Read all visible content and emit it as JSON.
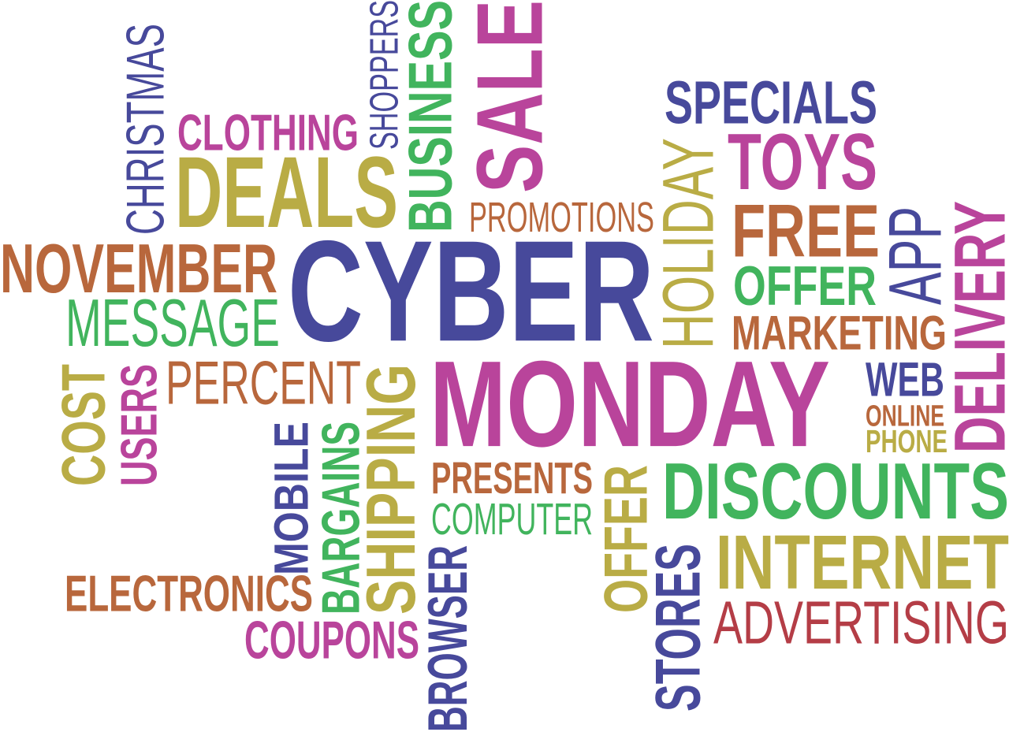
{
  "palette": {
    "blue": "#47499b",
    "magenta": "#b9449b",
    "olive": "#b9ac45",
    "green": "#41b45d",
    "orange": "#b8673c",
    "red": "#b43d46"
  },
  "words": [
    {
      "id": "cyber",
      "text": "CYBER",
      "color": "blue",
      "weight": "bold",
      "orientation": "horizontal"
    },
    {
      "id": "monday",
      "text": "MONDAY",
      "color": "magenta",
      "weight": "bold",
      "orientation": "horizontal"
    },
    {
      "id": "christmas",
      "text": "CHRISTMAS",
      "color": "blue",
      "weight": "normal",
      "orientation": "vertical"
    },
    {
      "id": "clothing",
      "text": "CLOTHING",
      "color": "magenta",
      "weight": "bold",
      "orientation": "horizontal"
    },
    {
      "id": "shoppers",
      "text": "SHOPPERS",
      "color": "blue",
      "weight": "normal",
      "orientation": "vertical"
    },
    {
      "id": "business",
      "text": "BUSINESS",
      "color": "green",
      "weight": "bold",
      "orientation": "vertical"
    },
    {
      "id": "sale",
      "text": "SALE",
      "color": "magenta",
      "weight": "bold",
      "orientation": "vertical"
    },
    {
      "id": "deals",
      "text": "DEALS",
      "color": "olive",
      "weight": "bold",
      "orientation": "horizontal"
    },
    {
      "id": "specials",
      "text": "SPECIALS",
      "color": "blue",
      "weight": "bold",
      "orientation": "horizontal"
    },
    {
      "id": "holiday",
      "text": "HOLIDAY",
      "color": "olive",
      "weight": "normal",
      "orientation": "vertical"
    },
    {
      "id": "toys",
      "text": "TOYS",
      "color": "magenta",
      "weight": "bold",
      "orientation": "horizontal"
    },
    {
      "id": "promotions",
      "text": "PROMOTIONS",
      "color": "orange",
      "weight": "normal",
      "orientation": "horizontal"
    },
    {
      "id": "free",
      "text": "FREE",
      "color": "orange",
      "weight": "bold",
      "orientation": "horizontal"
    },
    {
      "id": "app",
      "text": "APP",
      "color": "blue",
      "weight": "normal",
      "orientation": "vertical"
    },
    {
      "id": "delivery",
      "text": "DELIVERY",
      "color": "magenta",
      "weight": "bold",
      "orientation": "vertical"
    },
    {
      "id": "november",
      "text": "NOVEMBER",
      "color": "orange",
      "weight": "bold",
      "orientation": "horizontal"
    },
    {
      "id": "offer-green",
      "text": "OFFER",
      "color": "green",
      "weight": "bold",
      "orientation": "horizontal"
    },
    {
      "id": "message",
      "text": "MESSAGE",
      "color": "green",
      "weight": "normal",
      "orientation": "horizontal"
    },
    {
      "id": "marketing",
      "text": "MARKETING",
      "color": "orange",
      "weight": "bold",
      "orientation": "horizontal"
    },
    {
      "id": "web",
      "text": "WEB",
      "color": "blue",
      "weight": "bold",
      "orientation": "horizontal"
    },
    {
      "id": "cost",
      "text": "COST",
      "color": "olive",
      "weight": "bold",
      "orientation": "vertical"
    },
    {
      "id": "users",
      "text": "USERS",
      "color": "magenta",
      "weight": "bold",
      "orientation": "vertical"
    },
    {
      "id": "percent",
      "text": "PERCENT",
      "color": "orange",
      "weight": "normal",
      "orientation": "horizontal"
    },
    {
      "id": "shipping",
      "text": "SHIPPING",
      "color": "olive",
      "weight": "bold",
      "orientation": "vertical"
    },
    {
      "id": "online",
      "text": "ONLINE",
      "color": "orange",
      "weight": "bold",
      "orientation": "horizontal"
    },
    {
      "id": "phone",
      "text": "PHONE",
      "color": "olive",
      "weight": "bold",
      "orientation": "horizontal"
    },
    {
      "id": "mobile",
      "text": "MOBILE",
      "color": "blue",
      "weight": "bold",
      "orientation": "vertical"
    },
    {
      "id": "bargains",
      "text": "BARGAINS",
      "color": "green",
      "weight": "bold",
      "orientation": "vertical"
    },
    {
      "id": "presents",
      "text": "PRESENTS",
      "color": "orange",
      "weight": "bold",
      "orientation": "horizontal"
    },
    {
      "id": "offer-olive",
      "text": "OFFER",
      "color": "olive",
      "weight": "bold",
      "orientation": "vertical"
    },
    {
      "id": "discounts",
      "text": "DISCOUNTS",
      "color": "green",
      "weight": "bold",
      "orientation": "horizontal"
    },
    {
      "id": "computer",
      "text": "COMPUTER",
      "color": "green",
      "weight": "normal",
      "orientation": "horizontal"
    },
    {
      "id": "stores",
      "text": "STORES",
      "color": "blue",
      "weight": "bold",
      "orientation": "vertical"
    },
    {
      "id": "internet",
      "text": "INTERNET",
      "color": "olive",
      "weight": "bold",
      "orientation": "horizontal"
    },
    {
      "id": "electronics",
      "text": "ELECTRONICS",
      "color": "orange",
      "weight": "bold",
      "orientation": "horizontal"
    },
    {
      "id": "browser",
      "text": "BROWSER",
      "color": "blue",
      "weight": "bold",
      "orientation": "vertical"
    },
    {
      "id": "advertising",
      "text": "ADVERTISING",
      "color": "red",
      "weight": "normal",
      "orientation": "horizontal"
    },
    {
      "id": "coupons",
      "text": "COUPONS",
      "color": "magenta",
      "weight": "bold",
      "orientation": "horizontal"
    }
  ]
}
